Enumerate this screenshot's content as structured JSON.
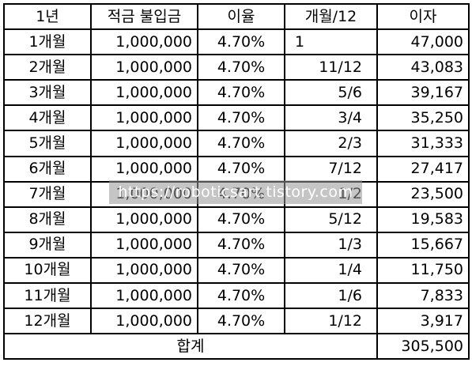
{
  "header": [
    "1년",
    "적금 불입금",
    "이율",
    "개월/12",
    "이자"
  ],
  "rows": [
    {
      "month": "1개월",
      "deposit": "1,000,000",
      "rate": "4.70%",
      "ratio": "1",
      "interest": "47,000"
    },
    {
      "month": "2개월",
      "deposit": "1,000,000",
      "rate": "4.70%",
      "ratio": "11/12",
      "interest": "43,083"
    },
    {
      "month": "3개월",
      "deposit": "1,000,000",
      "rate": "4.70%",
      "ratio": "5/6",
      "interest": "39,167"
    },
    {
      "month": "4개월",
      "deposit": "1,000,000",
      "rate": "4.70%",
      "ratio": "3/4",
      "interest": "35,250"
    },
    {
      "month": "5개월",
      "deposit": "1,000,000",
      "rate": "4.70%",
      "ratio": "2/3",
      "interest": "31,333"
    },
    {
      "month": "6개월",
      "deposit": "1,000,000",
      "rate": "4.70%",
      "ratio": "7/12",
      "interest": "27,417"
    },
    {
      "month": "7개월",
      "deposit": "1,000,000",
      "rate": "4.70%",
      "ratio": "1/2",
      "interest": "23,500"
    },
    {
      "month": "8개월",
      "deposit": "1,000,000",
      "rate": "4.70%",
      "ratio": "5/12",
      "interest": "19,583"
    },
    {
      "month": "9개월",
      "deposit": "1,000,000",
      "rate": "4.70%",
      "ratio": "1/3",
      "interest": "15,667"
    },
    {
      "month": "10개월",
      "deposit": "1,000,000",
      "rate": "4.70%",
      "ratio": "1/4",
      "interest": "11,750"
    },
    {
      "month": "11개월",
      "deposit": "1,000,000",
      "rate": "4.70%",
      "ratio": "1/6",
      "interest": "7,833"
    },
    {
      "month": "12개월",
      "deposit": "1,000,000",
      "rate": "4.70%",
      "ratio": "1/12",
      "interest": "3,917"
    }
  ],
  "total": {
    "label": "합계",
    "value": "305,500"
  },
  "watermark": "https://roboticsart.tistory.com"
}
